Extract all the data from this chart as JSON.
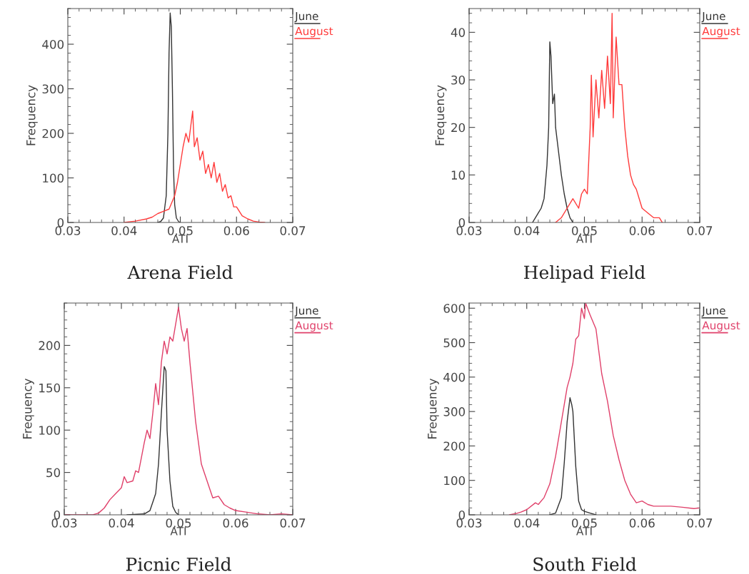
{
  "chart_data": [
    {
      "type": "line",
      "title": "Arena Field",
      "xlabel": "ATI",
      "ylabel": "Frequency",
      "xlim": [
        0.03,
        0.07
      ],
      "xticks": [
        0.03,
        0.04,
        0.05,
        0.06,
        0.07
      ],
      "ylim": [
        0,
        480
      ],
      "yticks": [
        0,
        100,
        200,
        300,
        400
      ],
      "grid": false,
      "legend": "top right",
      "series": [
        {
          "name": "June",
          "color": "#333333",
          "x": [
            0.046,
            0.0465,
            0.047,
            0.0475,
            0.0478,
            0.048,
            0.0482,
            0.0484,
            0.0486,
            0.0488,
            0.049,
            0.0493,
            0.0497,
            0.05
          ],
          "values": [
            0,
            2,
            10,
            60,
            200,
            380,
            470,
            440,
            300,
            120,
            40,
            10,
            2,
            0
          ]
        },
        {
          "name": "August",
          "color": "#ff3b3b",
          "x": [
            0.04,
            0.042,
            0.044,
            0.045,
            0.046,
            0.047,
            0.048,
            0.049,
            0.0495,
            0.05,
            0.0505,
            0.051,
            0.0515,
            0.052,
            0.0522,
            0.0525,
            0.053,
            0.0535,
            0.054,
            0.0545,
            0.055,
            0.0555,
            0.056,
            0.0565,
            0.057,
            0.0575,
            0.058,
            0.0585,
            0.059,
            0.0595,
            0.06,
            0.061,
            0.062,
            0.063,
            0.064,
            0.065
          ],
          "values": [
            0,
            3,
            8,
            12,
            20,
            25,
            30,
            60,
            90,
            130,
            170,
            200,
            180,
            230,
            250,
            170,
            190,
            140,
            160,
            110,
            130,
            100,
            135,
            90,
            110,
            70,
            85,
            55,
            60,
            35,
            35,
            15,
            8,
            3,
            1,
            0
          ]
        }
      ]
    },
    {
      "type": "line",
      "title": "Helipad Field",
      "xlabel": "ATI",
      "ylabel": "Frequency",
      "xlim": [
        0.03,
        0.07
      ],
      "xticks": [
        0.03,
        0.04,
        0.05,
        0.06,
        0.07
      ],
      "ylim": [
        0,
        45
      ],
      "yticks": [
        0,
        10,
        20,
        30,
        40
      ],
      "grid": false,
      "legend": "top right",
      "series": [
        {
          "name": "June",
          "color": "#333333",
          "x": [
            0.041,
            0.0415,
            0.042,
            0.0425,
            0.043,
            0.0435,
            0.0438,
            0.044,
            0.0442,
            0.0445,
            0.0448,
            0.045,
            0.0455,
            0.046,
            0.0465,
            0.047,
            0.0475,
            0.048
          ],
          "values": [
            0,
            1,
            2,
            3,
            5,
            12,
            20,
            38,
            35,
            25,
            27,
            20,
            15,
            10,
            6,
            3,
            1,
            0
          ]
        },
        {
          "name": "August",
          "color": "#ff3b3b",
          "x": [
            0.045,
            0.046,
            0.047,
            0.048,
            0.049,
            0.0495,
            0.05,
            0.0505,
            0.051,
            0.0512,
            0.0515,
            0.052,
            0.0525,
            0.053,
            0.0535,
            0.054,
            0.0545,
            0.0548,
            0.055,
            0.0555,
            0.056,
            0.0565,
            0.057,
            0.0575,
            0.058,
            0.0585,
            0.059,
            0.06,
            0.061,
            0.062,
            0.063,
            0.0635
          ],
          "values": [
            0,
            1,
            3,
            5,
            3,
            6,
            7,
            6,
            20,
            31,
            18,
            30,
            22,
            32,
            24,
            35,
            25,
            44,
            22,
            39,
            29,
            29,
            20,
            14,
            10,
            8,
            7,
            3,
            2,
            1,
            1,
            0
          ]
        }
      ]
    },
    {
      "type": "line",
      "title": "Picnic Field",
      "xlabel": "ATI",
      "ylabel": "Frequency",
      "xlim": [
        0.03,
        0.07
      ],
      "xticks": [
        0.03,
        0.04,
        0.05,
        0.06,
        0.07
      ],
      "ylim": [
        0,
        250
      ],
      "yticks": [
        0,
        50,
        100,
        150,
        200
      ],
      "grid": false,
      "legend": "top right",
      "series": [
        {
          "name": "June",
          "color": "#333333",
          "x": [
            0.041,
            0.044,
            0.045,
            0.0455,
            0.046,
            0.0465,
            0.047,
            0.0475,
            0.0478,
            0.048,
            0.0485,
            0.049,
            0.0495,
            0.05
          ],
          "values": [
            0,
            1,
            5,
            15,
            25,
            60,
            120,
            175,
            170,
            100,
            40,
            10,
            3,
            0
          ]
        },
        {
          "name": "August",
          "color": "#e0406a",
          "x": [
            0.03,
            0.035,
            0.036,
            0.037,
            0.038,
            0.039,
            0.04,
            0.0405,
            0.041,
            0.042,
            0.0425,
            0.043,
            0.044,
            0.0445,
            0.045,
            0.0455,
            0.046,
            0.0465,
            0.047,
            0.0475,
            0.048,
            0.0485,
            0.049,
            0.05,
            0.0505,
            0.051,
            0.0515,
            0.052,
            0.053,
            0.054,
            0.055,
            0.056,
            0.057,
            0.058,
            0.059,
            0.06,
            0.062,
            0.064,
            0.066,
            0.068,
            0.07
          ],
          "values": [
            0,
            0,
            2,
            8,
            18,
            25,
            32,
            45,
            38,
            40,
            52,
            50,
            85,
            100,
            90,
            120,
            155,
            130,
            180,
            205,
            190,
            210,
            205,
            245,
            220,
            205,
            220,
            180,
            110,
            60,
            40,
            20,
            22,
            12,
            8,
            5,
            3,
            1,
            0,
            1,
            0
          ]
        }
      ]
    },
    {
      "type": "line",
      "title": "South Field",
      "xlabel": "ATI",
      "ylabel": "Frequency",
      "xlim": [
        0.03,
        0.07
      ],
      "xticks": [
        0.03,
        0.04,
        0.05,
        0.06,
        0.07
      ],
      "ylim": [
        0,
        615
      ],
      "yticks": [
        0,
        100,
        200,
        300,
        400,
        500,
        600
      ],
      "grid": false,
      "legend": "top right",
      "series": [
        {
          "name": "June",
          "color": "#333333",
          "x": [
            0.044,
            0.045,
            0.046,
            0.0465,
            0.047,
            0.0475,
            0.0478,
            0.048,
            0.0485,
            0.049,
            0.0495,
            0.05,
            0.051,
            0.052
          ],
          "values": [
            0,
            5,
            50,
            150,
            270,
            340,
            320,
            300,
            140,
            40,
            15,
            10,
            5,
            0
          ]
        },
        {
          "name": "August",
          "color": "#e0406a",
          "x": [
            0.037,
            0.038,
            0.039,
            0.04,
            0.0415,
            0.042,
            0.043,
            0.044,
            0.045,
            0.046,
            0.047,
            0.0475,
            0.048,
            0.0485,
            0.049,
            0.0495,
            0.05,
            0.0502,
            0.051,
            0.052,
            0.053,
            0.0535,
            0.054,
            0.055,
            0.056,
            0.057,
            0.058,
            0.059,
            0.06,
            0.061,
            0.062,
            0.063,
            0.065,
            0.067,
            0.069,
            0.07
          ],
          "values": [
            0,
            3,
            8,
            15,
            35,
            30,
            50,
            90,
            170,
            270,
            370,
            400,
            440,
            510,
            520,
            600,
            570,
            615,
            580,
            540,
            410,
            370,
            330,
            230,
            160,
            100,
            60,
            35,
            40,
            30,
            25,
            25,
            25,
            22,
            18,
            20
          ]
        }
      ]
    }
  ]
}
